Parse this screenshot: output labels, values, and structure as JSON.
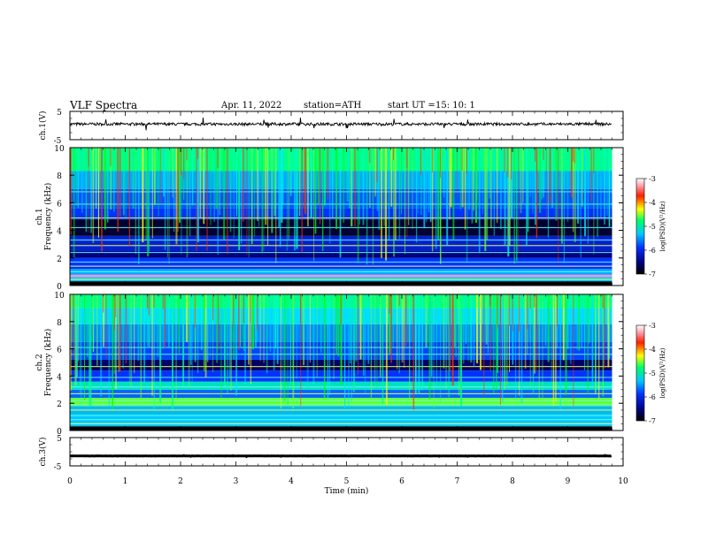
{
  "header": {
    "title": "VLF Spectra",
    "date": "Apr. 11, 2022",
    "station": "station=ATH",
    "start_label": "start UT =",
    "start_time": "15: 10: 1"
  },
  "chart_data": [
    {
      "type": "line",
      "panel": "ch.1 waveform",
      "ylabel": "ch.1(V)",
      "yticklabels": [
        "5",
        "-5"
      ],
      "ylim": [
        -5,
        5
      ],
      "x_range_min": [
        0,
        9.8
      ],
      "level_v": 0.5,
      "noise_amplitude_v": 1.0
    },
    {
      "type": "heatmap",
      "panel": "ch.1 spectrogram",
      "ylabel": "ch.1\nFrequency (kHz)",
      "yticks": [
        0,
        2,
        4,
        6,
        8,
        10
      ],
      "ylim": [
        0,
        10
      ],
      "x_range_min": [
        0,
        9.8
      ],
      "colorbar": {
        "label": "log(PSD)(V²/Hz)",
        "range": [
          -7,
          -3
        ],
        "ticks": [
          -3,
          -4,
          -5,
          -6,
          -7
        ]
      }
    },
    {
      "type": "heatmap",
      "panel": "ch.2 spectrogram",
      "ylabel": "ch.2\nFrequency (kHz)",
      "yticks": [
        0,
        2,
        4,
        6,
        8,
        10
      ],
      "ylim": [
        0,
        10
      ],
      "x_range_min": [
        0,
        9.8
      ],
      "colorbar": {
        "label": "log(PSD)(V²/Hz)",
        "range": [
          -7,
          -3
        ],
        "ticks": [
          -3,
          -4,
          -5,
          -6,
          -7
        ]
      }
    },
    {
      "type": "line",
      "panel": "ch.3 waveform",
      "ylabel": "ch.3(V)",
      "yticklabels": [
        "5",
        "-5"
      ],
      "ylim": [
        -5,
        5
      ],
      "x_range_min": [
        0,
        9.8
      ],
      "level_v": -1.5,
      "noise_amplitude_v": 0.08
    }
  ],
  "xaxis": {
    "label": "Time (min)",
    "ticks": [
      0,
      1,
      2,
      3,
      4,
      5,
      6,
      7,
      8,
      9,
      10
    ],
    "lim": [
      0,
      10
    ]
  }
}
